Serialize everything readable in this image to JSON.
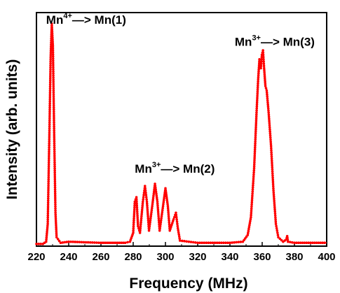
{
  "chart_data": {
    "type": "line",
    "xlabel": "Frequency (MHz)",
    "ylabel": "Intensity (arb. units)",
    "xlim": [
      220,
      400
    ],
    "ylim": [
      0,
      1.05
    ],
    "xticks": [
      "220",
      "240",
      "260",
      "280",
      "300",
      "320",
      "340",
      "360",
      "380",
      "400"
    ],
    "grid": false,
    "color": "#ff0000",
    "marker": "dot",
    "annotations": [
      {
        "ion": "Mn",
        "charge": "4+",
        "arrow": "—>",
        "site": "Mn(1)",
        "x": 226,
        "y": 1.0
      },
      {
        "ion": "Mn",
        "charge": "3+",
        "arrow": "—>",
        "site": "Mn(2)",
        "x": 281,
        "y": 0.33
      },
      {
        "ion": "Mn",
        "charge": "3+",
        "arrow": "—>",
        "site": "Mn(3)",
        "x": 343,
        "y": 0.9
      }
    ],
    "series": [
      {
        "points": [
          [
            220,
            0.01
          ],
          [
            224,
            0.01
          ],
          [
            226,
            0.02
          ],
          [
            227,
            0.1
          ],
          [
            228,
            0.5
          ],
          [
            228.8,
            0.85
          ],
          [
            229.5,
            1.0
          ],
          [
            230.2,
            0.9
          ],
          [
            231,
            0.5
          ],
          [
            231.8,
            0.15
          ],
          [
            232.5,
            0.04
          ],
          [
            235,
            0.015
          ],
          [
            240,
            0.02
          ],
          [
            260,
            0.015
          ],
          [
            275,
            0.015
          ],
          [
            278,
            0.02
          ],
          [
            280,
            0.06
          ],
          [
            281,
            0.2
          ],
          [
            282,
            0.22
          ],
          [
            283,
            0.09
          ],
          [
            284.2,
            0.06
          ],
          [
            286,
            0.2
          ],
          [
            287.3,
            0.27
          ],
          [
            288.5,
            0.2
          ],
          [
            289.8,
            0.07
          ],
          [
            291.8,
            0.18
          ],
          [
            293.5,
            0.28
          ],
          [
            295,
            0.2
          ],
          [
            296.4,
            0.07
          ],
          [
            298.5,
            0.18
          ],
          [
            300,
            0.26
          ],
          [
            301.5,
            0.18
          ],
          [
            302.7,
            0.07
          ],
          [
            305,
            0.12
          ],
          [
            306.5,
            0.15
          ],
          [
            307.7,
            0.08
          ],
          [
            309,
            0.025
          ],
          [
            320,
            0.015
          ],
          [
            340,
            0.015
          ],
          [
            348,
            0.02
          ],
          [
            351,
            0.05
          ],
          [
            353,
            0.13
          ],
          [
            355,
            0.35
          ],
          [
            356.5,
            0.6
          ],
          [
            357.5,
            0.75
          ],
          [
            358.3,
            0.84
          ],
          [
            359.2,
            0.8
          ],
          [
            359.8,
            0.86
          ],
          [
            360.5,
            0.88
          ],
          [
            361.2,
            0.8
          ],
          [
            362,
            0.72
          ],
          [
            362.8,
            0.7
          ],
          [
            364,
            0.6
          ],
          [
            365.5,
            0.45
          ],
          [
            367,
            0.25
          ],
          [
            368.5,
            0.1
          ],
          [
            370,
            0.04
          ],
          [
            373,
            0.02
          ],
          [
            375,
            0.03
          ],
          [
            375.5,
            0.045
          ],
          [
            376,
            0.02
          ],
          [
            380,
            0.015
          ],
          [
            390,
            0.015
          ],
          [
            400,
            0.015
          ]
        ]
      }
    ]
  }
}
